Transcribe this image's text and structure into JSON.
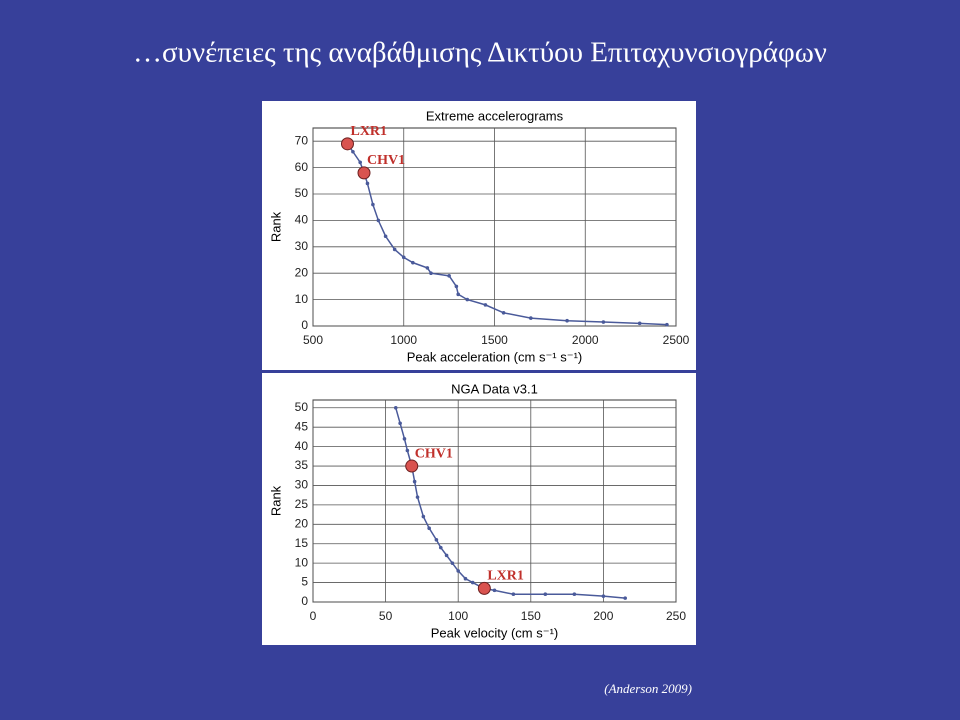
{
  "slide": {
    "title": "…συνέπειες της αναβάθμισης Δικτύου Επιταχυνσιογράφων",
    "citation": "(Anderson 2009)"
  },
  "chart_data": [
    {
      "type": "line",
      "title": "Extreme accelerograms",
      "x_label": "Peak acceleration (cm s⁻¹ s⁻¹)",
      "y_label": "Rank",
      "x": [
        690,
        720,
        760,
        781,
        800,
        830,
        860,
        900,
        950,
        1000,
        1050,
        1130,
        1150,
        1250,
        1290,
        1300,
        1350,
        1450,
        1550,
        1700,
        1900,
        2100,
        2300,
        2450
      ],
      "values": [
        69,
        66,
        62,
        58,
        54,
        46,
        40,
        34,
        29,
        26,
        24,
        22,
        20,
        19,
        15,
        12,
        10,
        8,
        5,
        3,
        2,
        1.5,
        1,
        0.5
      ],
      "color": "#4a5a9a",
      "xlim": [
        500,
        2500
      ],
      "xticks": [
        500,
        1000,
        1500,
        2000,
        2500
      ],
      "ylim": [
        0,
        75
      ],
      "yticks": [
        0,
        10,
        20,
        30,
        40,
        50,
        60,
        70
      ],
      "grid": true,
      "highlights": [
        {
          "label": "LXR1",
          "x": 690,
          "y": 69
        },
        {
          "label": "CHV1",
          "x": 781,
          "y": 58
        }
      ]
    },
    {
      "type": "line",
      "title": "NGA Data v3.1",
      "x_label": "Peak velocity (cm s⁻¹)",
      "y_label": "Rank",
      "x": [
        57,
        60,
        63,
        65,
        68,
        70,
        72,
        76,
        80,
        85,
        88,
        92,
        96,
        100,
        105,
        110,
        115,
        118,
        125,
        138,
        160,
        180,
        200,
        215
      ],
      "values": [
        50,
        46,
        42,
        39,
        35,
        31,
        27,
        22,
        19,
        16,
        14,
        12,
        10,
        8,
        6,
        5,
        4,
        3.5,
        3,
        2,
        2,
        2,
        1.5,
        1
      ],
      "color": "#4a5a9a",
      "xlim": [
        0,
        250
      ],
      "xticks": [
        0,
        50,
        100,
        150,
        200,
        250
      ],
      "ylim": [
        0,
        52
      ],
      "yticks": [
        0,
        5,
        10,
        15,
        20,
        25,
        30,
        35,
        40,
        45,
        50
      ],
      "grid": true,
      "highlights": [
        {
          "label": "CHV1",
          "x": 68,
          "y": 35
        },
        {
          "label": "LXR1",
          "x": 118,
          "y": 3.5
        }
      ]
    }
  ]
}
